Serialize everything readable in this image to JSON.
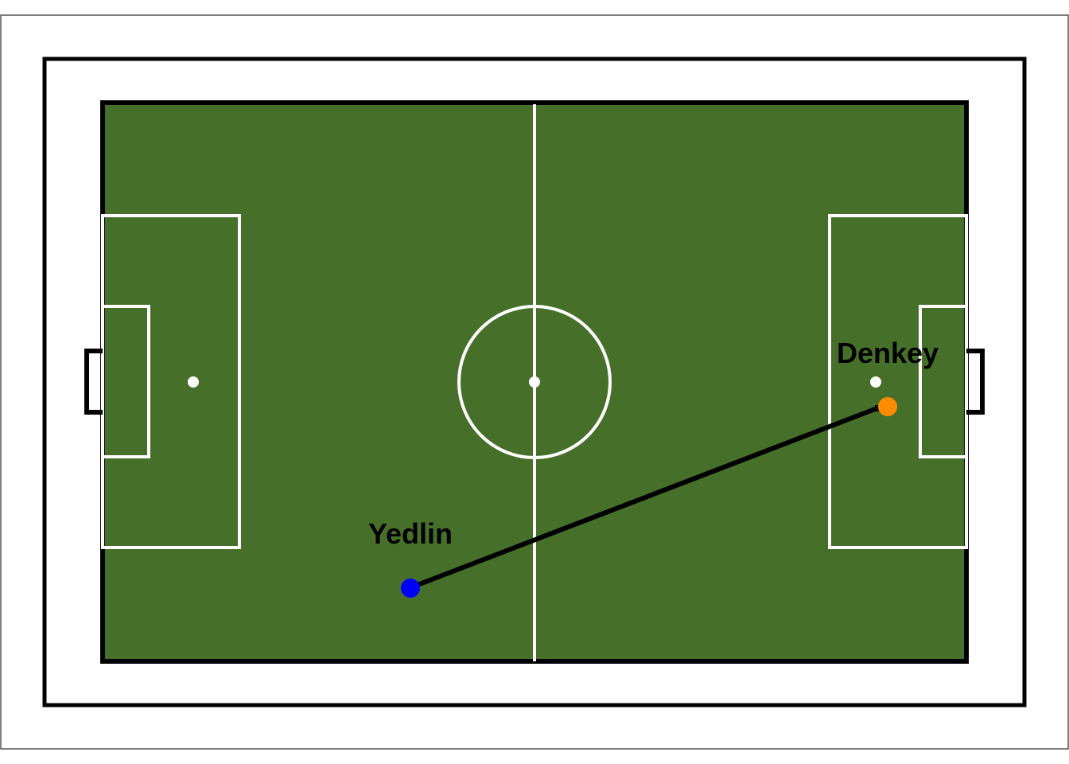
{
  "colors": {
    "pitch": "#46702a",
    "lines": "#ffffff",
    "border": "#000000",
    "passer": "#0000ff",
    "receiver": "#ff8c00",
    "pass_arrow": "#000000"
  },
  "players": {
    "passer": {
      "name": "Yedlin"
    },
    "receiver": {
      "name": "Denkey"
    }
  }
}
